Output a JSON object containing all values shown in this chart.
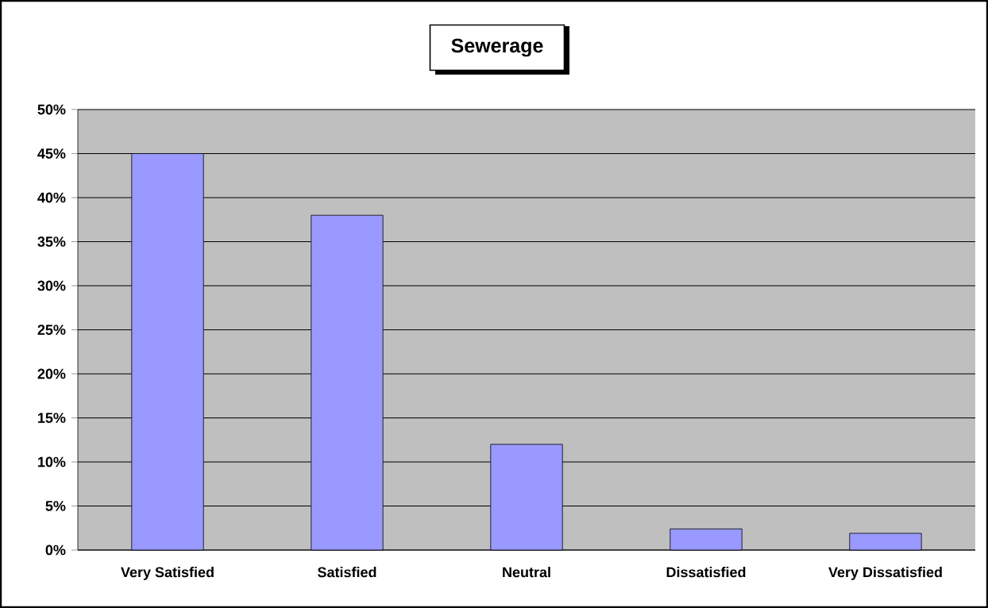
{
  "chart_data": {
    "type": "bar",
    "title": "Sewerage",
    "categories": [
      "Very Satisfied",
      "Satisfied",
      "Neutral",
      "Dissatisfied",
      "Very Dissatisfied"
    ],
    "values": [
      45,
      38,
      12,
      2.4,
      1.9
    ],
    "color": "#9999ff",
    "ylim": [
      0,
      50
    ],
    "yticks": [
      {
        "value": 0,
        "label": "0%"
      },
      {
        "value": 5,
        "label": "5%"
      },
      {
        "value": 10,
        "label": "10%"
      },
      {
        "value": 15,
        "label": "15%"
      },
      {
        "value": 20,
        "label": "20%"
      },
      {
        "value": 25,
        "label": "25%"
      },
      {
        "value": 30,
        "label": "30%"
      },
      {
        "value": 35,
        "label": "35%"
      },
      {
        "value": 40,
        "label": "40%"
      },
      {
        "value": 45,
        "label": "45%"
      },
      {
        "value": 50,
        "label": "50%"
      }
    ],
    "grid": "y"
  }
}
